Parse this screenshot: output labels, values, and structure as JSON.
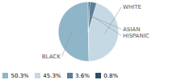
{
  "chart_data": {
    "type": "pie",
    "categories": [
      "BLACK",
      "WHITE",
      "HISPANIC",
      "ASIAN"
    ],
    "values": [
      50.3,
      45.3,
      3.6,
      0.8
    ],
    "value_labels": [
      "50.3%",
      "45.3%",
      "3.6%",
      "0.8%"
    ],
    "colors": [
      "#8fb5c8",
      "#c5d9e5",
      "#5a8096",
      "#2a5068"
    ],
    "legend": "lower left"
  }
}
